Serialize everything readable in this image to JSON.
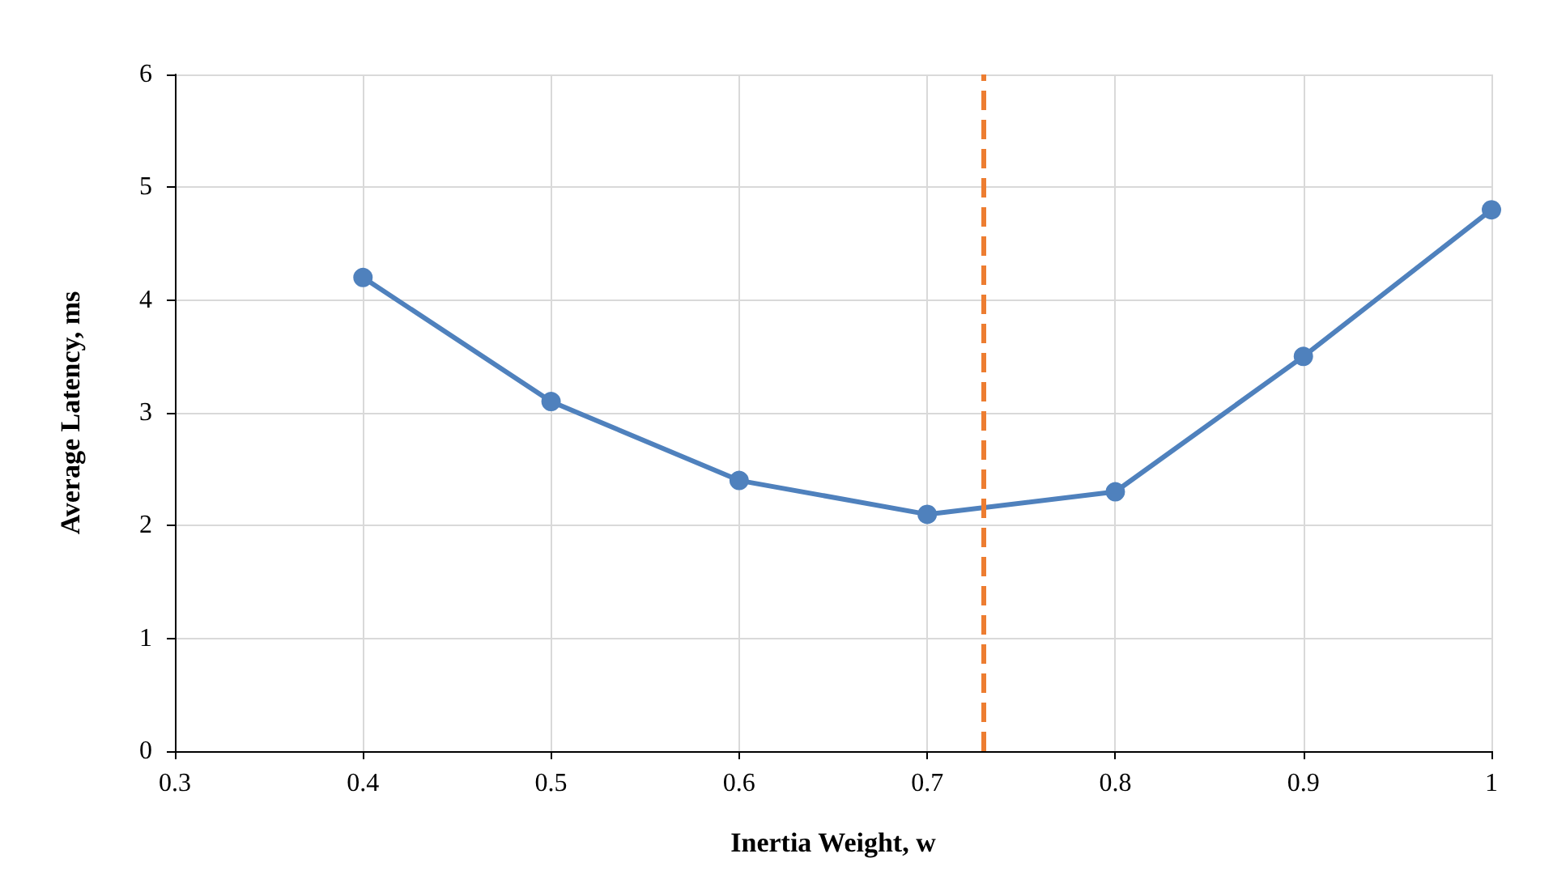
{
  "chart_data": {
    "type": "line",
    "xlabel": "Inertia Weight, w",
    "ylabel": "Average Latency, ms",
    "x": [
      0.4,
      0.5,
      0.6,
      0.7,
      0.8,
      0.9,
      1
    ],
    "series": [
      {
        "color": "#4f81bd",
        "values": [
          4.2,
          3.1,
          2.4,
          2.1,
          2.3,
          3.5,
          4.8
        ]
      }
    ],
    "xlim": [
      0.3,
      1
    ],
    "xticks": [
      0.3,
      0.4,
      0.5,
      0.6,
      0.7,
      0.8,
      0.9,
      1
    ],
    "ylim": [
      0,
      6
    ],
    "yticks": [
      0,
      1,
      2,
      3,
      4,
      5,
      6
    ],
    "ref_lines": [
      {
        "axis": "x",
        "value": 0.73,
        "color": "#ed7d31",
        "line_style": "dashed"
      }
    ],
    "grid": true,
    "marker": "circle",
    "line_style": "solid"
  }
}
